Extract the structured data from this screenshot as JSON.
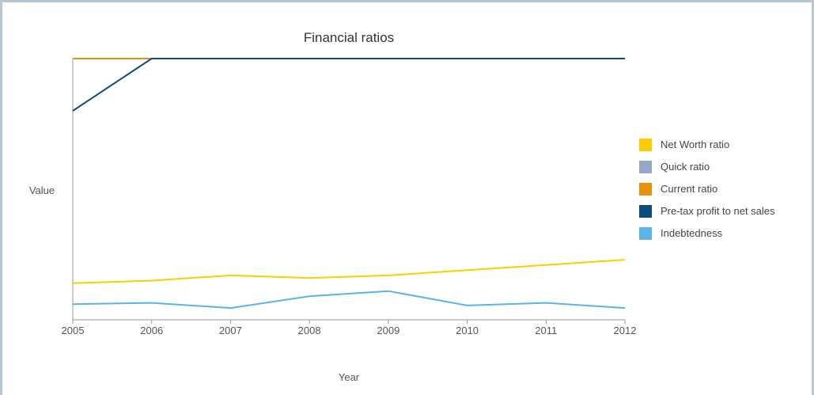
{
  "chart_data": {
    "type": "line",
    "title": "Financial ratios",
    "xlabel": "Year",
    "ylabel": "Value",
    "x": [
      2005,
      2006,
      2007,
      2008,
      2009,
      2010,
      2011,
      2012
    ],
    "ylim": [
      0,
      100
    ],
    "grid": false,
    "legend_position": "right",
    "series": [
      {
        "name": "Net Worth ratio",
        "color": "#ffcc00",
        "values": [
          14,
          15,
          17,
          16,
          17,
          19,
          21,
          23
        ]
      },
      {
        "name": "Quick ratio",
        "color": "#8fa9c6",
        "values": [
          100,
          100,
          100,
          100,
          100,
          100,
          100,
          100
        ]
      },
      {
        "name": "Current ratio",
        "color": "#e8900c",
        "values": [
          100,
          100,
          100,
          100,
          100,
          100,
          100,
          100
        ]
      },
      {
        "name": "Pre-tax profit to net sales",
        "color": "#0a4c84",
        "values": [
          80,
          100,
          100,
          100,
          100,
          100,
          100,
          100
        ]
      },
      {
        "name": "Indebtedness",
        "color": "#5ab4e8",
        "values": [
          6,
          6.5,
          4.5,
          9,
          11,
          5.5,
          6.5,
          4.5
        ]
      }
    ]
  }
}
